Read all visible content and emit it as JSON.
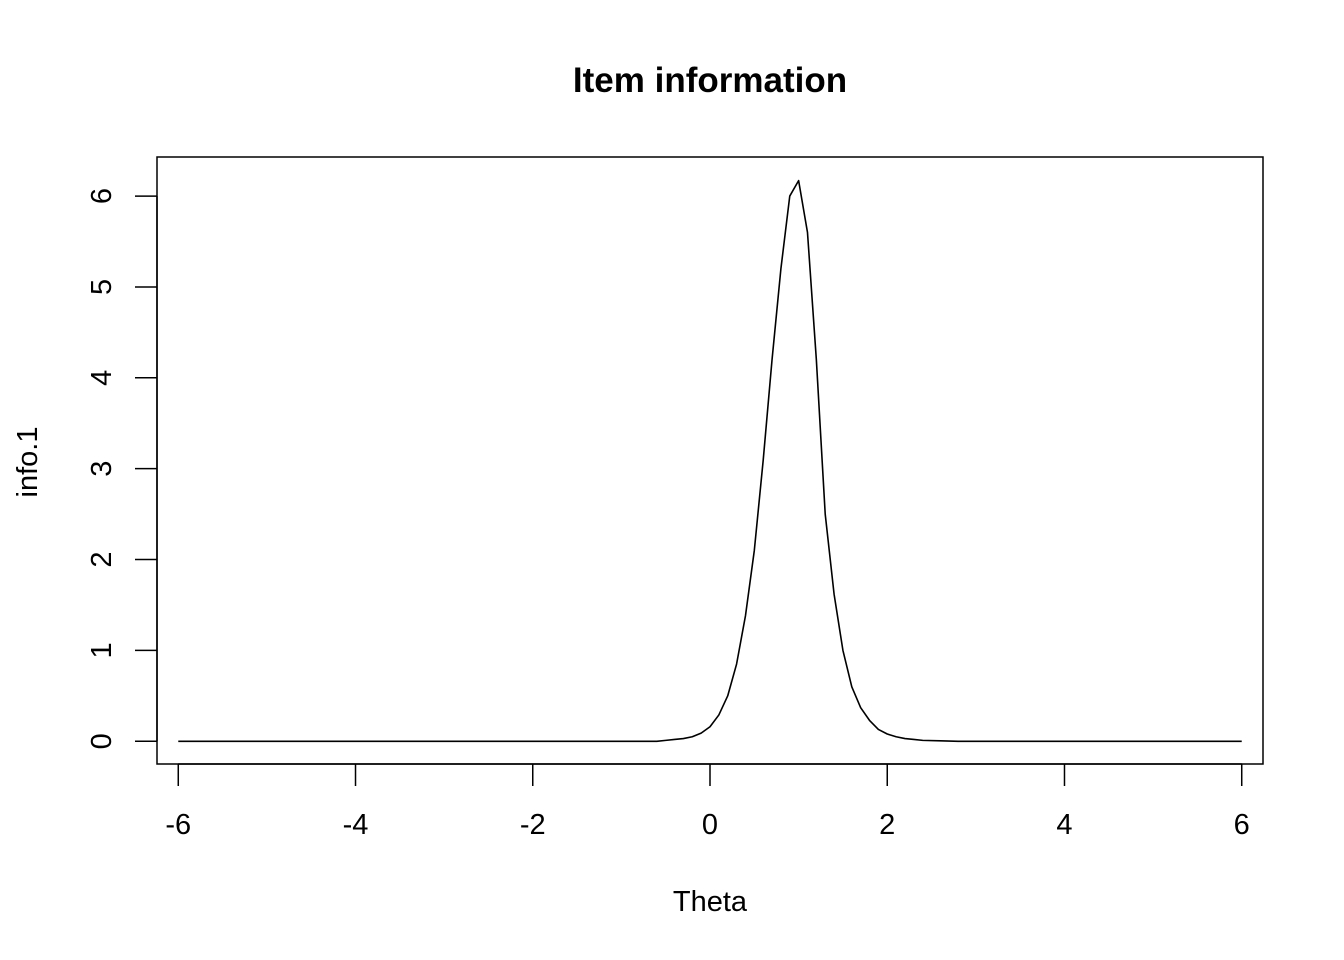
{
  "chart_data": {
    "type": "line",
    "title": "Item information",
    "xlabel": "Theta",
    "ylabel": "info.1",
    "xlim": [
      -6.24,
      6.24
    ],
    "ylim": [
      -0.25,
      6.43
    ],
    "x_ticks": [
      -6,
      -4,
      -2,
      0,
      2,
      4,
      6
    ],
    "y_ticks": [
      0,
      1,
      2,
      3,
      4,
      5,
      6
    ],
    "x_tick_labels": [
      "-6",
      "-4",
      "-2",
      "0",
      "2",
      "4",
      "6"
    ],
    "y_tick_labels": [
      "0",
      "1",
      "2",
      "3",
      "4",
      "5",
      "6"
    ],
    "grid": false,
    "legend": "none",
    "line_color": "#000000",
    "series": [
      {
        "x": [
          -6,
          -1.5,
          -1.0,
          -0.6,
          -0.5,
          -0.4,
          -0.3,
          -0.2,
          -0.1,
          0.0,
          0.1,
          0.2,
          0.3,
          0.4,
          0.5,
          0.6,
          0.7,
          0.8,
          0.9,
          1.0,
          1.1,
          1.2,
          1.3,
          1.4,
          1.5,
          1.6,
          1.7,
          1.8,
          1.9,
          2.0,
          2.1,
          2.2,
          2.3,
          2.4,
          2.6,
          2.8,
          3.0,
          4.0,
          6.0
        ],
        "values": [
          0.0,
          0.0,
          0.0,
          0.0,
          0.01,
          0.02,
          0.03,
          0.05,
          0.09,
          0.16,
          0.29,
          0.5,
          0.85,
          1.38,
          2.1,
          3.09,
          4.2,
          5.2,
          6.0,
          6.17,
          5.6,
          4.2,
          2.5,
          1.62,
          1.0,
          0.6,
          0.37,
          0.23,
          0.13,
          0.08,
          0.05,
          0.03,
          0.02,
          0.01,
          0.005,
          0.0,
          0.0,
          0.0,
          0.0
        ]
      }
    ]
  }
}
